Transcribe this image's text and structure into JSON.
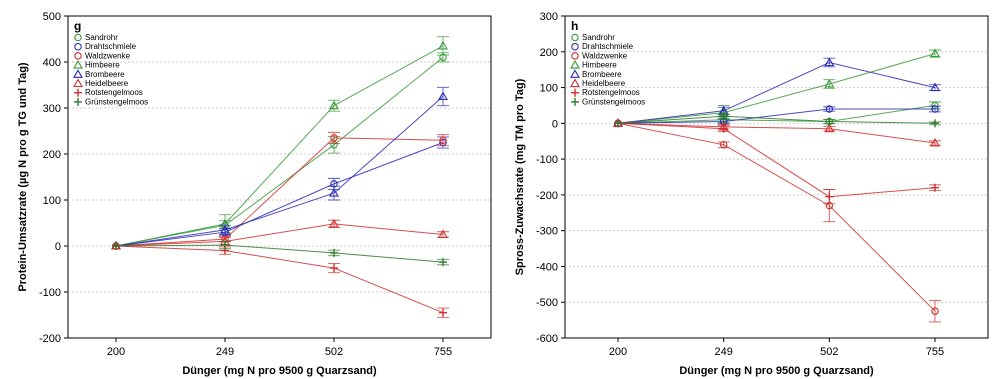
{
  "chart_data": [
    {
      "type": "line",
      "panel_label": "g",
      "xlabel": "Dünger (mg N pro 9500 g Quarzsand)",
      "ylabel": "Protein-Umsatzrate (µg N pro g TG und Tag)",
      "categories": [
        "200",
        "249",
        "502",
        "755"
      ],
      "ylim": [
        -200,
        500
      ],
      "yticks": [
        -200,
        -100,
        0,
        100,
        200,
        300,
        400,
        500
      ],
      "grid": true,
      "legend_position": "top-left",
      "series": [
        {
          "name": "Sandrohr",
          "color": "#3a9a3a",
          "marker": "circle",
          "values": [
            0,
            45,
            220,
            410
          ],
          "err": [
            0,
            10,
            18,
            10
          ]
        },
        {
          "name": "Drahtschmiele",
          "color": "#2a2ab8",
          "marker": "circle",
          "values": [
            0,
            30,
            135,
            225
          ],
          "err": [
            0,
            8,
            12,
            12
          ]
        },
        {
          "name": "Waldzwenke",
          "color": "#d03030",
          "marker": "circle",
          "values": [
            0,
            15,
            235,
            230
          ],
          "err": [
            0,
            6,
            12,
            12
          ]
        },
        {
          "name": "Himbeere",
          "color": "#3a9a3a",
          "marker": "triangle",
          "values": [
            0,
            48,
            305,
            435
          ],
          "err": [
            0,
            20,
            12,
            20
          ]
        },
        {
          "name": "Brombeere",
          "color": "#2a2ab8",
          "marker": "triangle",
          "values": [
            0,
            35,
            115,
            325
          ],
          "err": [
            0,
            10,
            15,
            20
          ]
        },
        {
          "name": "Heidelbeere",
          "color": "#d03030",
          "marker": "triangle",
          "values": [
            0,
            10,
            48,
            25
          ],
          "err": [
            0,
            8,
            8,
            6
          ]
        },
        {
          "name": "Rotstengelmoos",
          "color": "#d03030",
          "marker": "plus",
          "values": [
            0,
            -10,
            -48,
            -145
          ],
          "err": [
            0,
            8,
            10,
            10
          ]
        },
        {
          "name": "Grünstengelmoos",
          "color": "#2a7a2a",
          "marker": "plus",
          "values": [
            0,
            2,
            -15,
            -35
          ],
          "err": [
            0,
            8,
            6,
            6
          ]
        }
      ]
    },
    {
      "type": "line",
      "panel_label": "h",
      "xlabel": "Dünger (mg N pro 9500 g Quarzsand)",
      "ylabel": "Spross-Zuwachsrate (mg TM pro Tag)",
      "categories": [
        "200",
        "249",
        "502",
        "755"
      ],
      "ylim": [
        -600,
        300
      ],
      "yticks": [
        -600,
        -500,
        -400,
        -300,
        -200,
        -100,
        0,
        100,
        200,
        300
      ],
      "grid": true,
      "legend_position": "top-left",
      "series": [
        {
          "name": "Sandrohr",
          "color": "#3a9a3a",
          "marker": "circle",
          "values": [
            0,
            10,
            5,
            50
          ],
          "err": [
            0,
            8,
            6,
            10
          ]
        },
        {
          "name": "Drahtschmiele",
          "color": "#2a2ab8",
          "marker": "circle",
          "values": [
            0,
            5,
            40,
            40
          ],
          "err": [
            0,
            6,
            6,
            8
          ]
        },
        {
          "name": "Waldzwenke",
          "color": "#d03030",
          "marker": "circle",
          "values": [
            0,
            -60,
            -230,
            -525
          ],
          "err": [
            0,
            8,
            45,
            30
          ]
        },
        {
          "name": "Himbeere",
          "color": "#3a9a3a",
          "marker": "triangle",
          "values": [
            0,
            30,
            110,
            195
          ],
          "err": [
            0,
            20,
            12,
            10
          ]
        },
        {
          "name": "Brombeere",
          "color": "#2a2ab8",
          "marker": "triangle",
          "values": [
            0,
            35,
            170,
            100
          ],
          "err": [
            0,
            10,
            12,
            8
          ]
        },
        {
          "name": "Heidelbeere",
          "color": "#d03030",
          "marker": "triangle",
          "values": [
            0,
            -10,
            -15,
            -55
          ],
          "err": [
            0,
            6,
            6,
            6
          ]
        },
        {
          "name": "Rotstengelmoos",
          "color": "#d03030",
          "marker": "plus",
          "values": [
            0,
            -15,
            -205,
            -180
          ],
          "err": [
            0,
            8,
            20,
            8
          ]
        },
        {
          "name": "Grünstengelmoos",
          "color": "#2a7a2a",
          "marker": "plus",
          "values": [
            0,
            20,
            5,
            0
          ],
          "err": [
            0,
            6,
            6,
            4
          ]
        }
      ]
    }
  ]
}
